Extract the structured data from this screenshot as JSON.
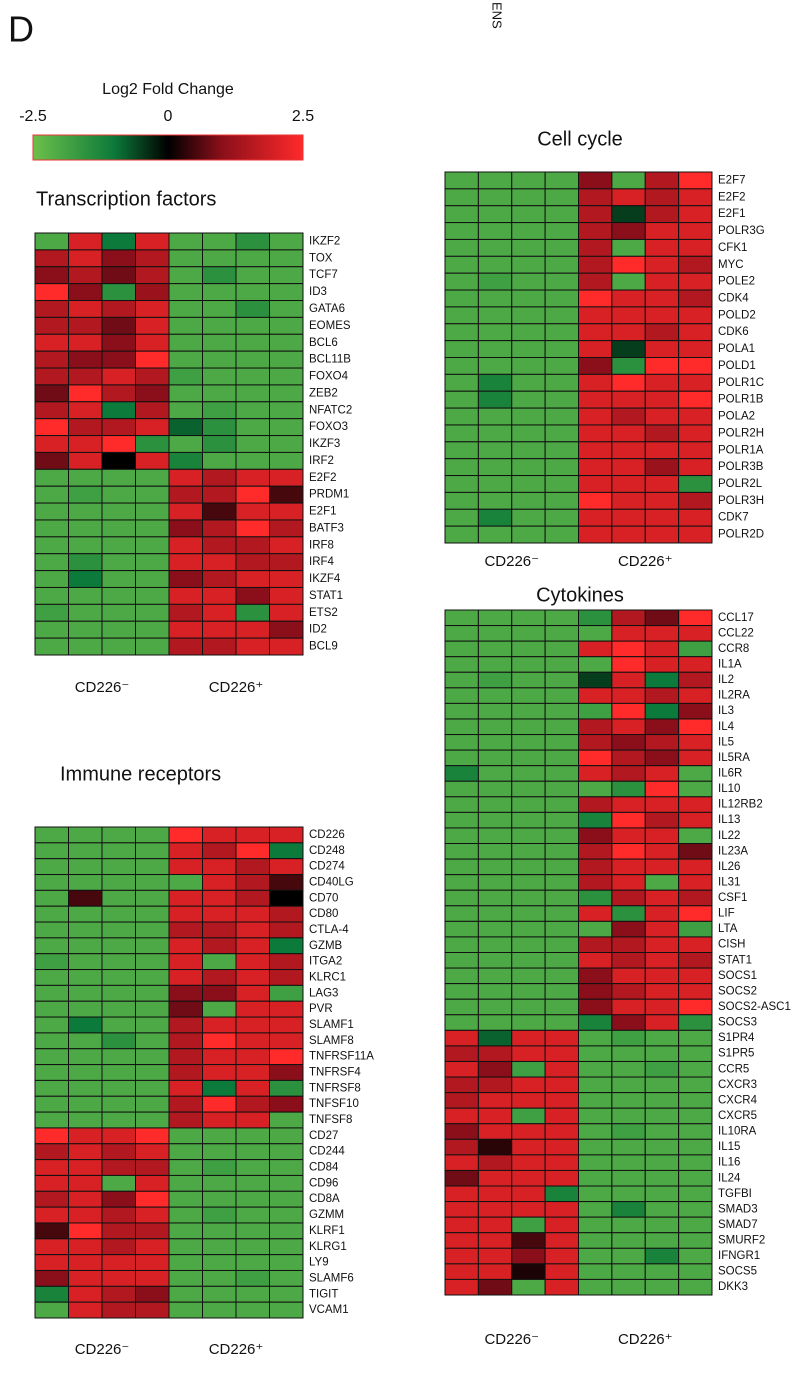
{
  "panel_label": "D",
  "cut_text": "ENS",
  "colorbar": {
    "title": "Log2 Fold Change",
    "lim": [
      -2.5,
      2.5
    ],
    "ticks": [
      -2.5,
      0,
      2.5
    ]
  },
  "chart_data": [
    {
      "type": "heatmap",
      "title": "Transcription factors",
      "groups": [
        "CD226⁻",
        "CD226⁺"
      ],
      "rows": [
        "IKZF2",
        "TOX",
        "TCF7",
        "ID3",
        "GATA6",
        "EOMES",
        "BCL6",
        "BCL11B",
        "FOXO4",
        "ZEB2",
        "NFATC2",
        "FOXO3",
        "IKZF3",
        "IRF2",
        "E2F2",
        "PRDM1",
        "E2F1",
        "BATF3",
        "IRF8",
        "IRF4",
        "IKZF4",
        "STAT1",
        "ETS2",
        "ID2",
        "BCL9"
      ],
      "values": [
        [
          -2,
          2,
          -1,
          2,
          -2,
          -2,
          -1.5,
          -2
        ],
        [
          1.5,
          2,
          1,
          1.5,
          -2,
          -2,
          -2,
          -2
        ],
        [
          1,
          1.5,
          0.8,
          1.5,
          -2,
          -1.5,
          -2,
          -2
        ],
        [
          2.5,
          1,
          -1.5,
          1.2,
          -2,
          -2,
          -2,
          -2
        ],
        [
          1.5,
          2,
          1.5,
          2,
          -2,
          -2,
          -1.5,
          -2
        ],
        [
          1.5,
          1.5,
          0.8,
          2,
          -2,
          -2,
          -2,
          -2
        ],
        [
          2,
          2,
          1,
          2,
          -2,
          -2,
          -2,
          -2
        ],
        [
          1.5,
          1,
          1,
          2.5,
          -2,
          -2,
          -2,
          -2
        ],
        [
          1.5,
          1.5,
          2,
          1.5,
          -1.8,
          -2,
          -2,
          -2
        ],
        [
          0.8,
          2.5,
          1.5,
          1,
          -2,
          -2,
          -2,
          -2
        ],
        [
          1.5,
          2,
          -1,
          1.5,
          -2,
          -1.8,
          -2,
          -2
        ],
        [
          2.5,
          1.5,
          1.5,
          2,
          -0.8,
          -1.5,
          -2,
          -2
        ],
        [
          2,
          2,
          2.5,
          -1.5,
          -2,
          -1.5,
          -2,
          -2
        ],
        [
          0.8,
          2,
          0,
          2,
          -1.2,
          -2,
          -2,
          -2
        ],
        [
          -2,
          -2,
          -2,
          -2,
          2,
          1.5,
          2,
          2
        ],
        [
          -2,
          -1.8,
          -2,
          -2,
          1.5,
          1.5,
          2.5,
          0.5
        ],
        [
          -2,
          -2,
          -2,
          -2,
          2,
          0.5,
          2,
          2
        ],
        [
          -2,
          -2,
          -2,
          -2,
          1,
          1.5,
          2.5,
          1.5
        ],
        [
          -2,
          -2,
          -2,
          -2,
          2,
          1.5,
          1.5,
          2
        ],
        [
          -2,
          -1.5,
          -2,
          -2,
          2,
          2,
          1.5,
          1.5
        ],
        [
          -2,
          -1,
          -2,
          -2,
          1,
          1.5,
          2,
          2
        ],
        [
          -2,
          -2,
          -2,
          -2,
          2,
          2,
          1,
          2
        ],
        [
          -1.8,
          -2,
          -2,
          -2,
          1.5,
          2,
          -1.5,
          2
        ],
        [
          -2,
          -2,
          -2,
          -2,
          2,
          2,
          2,
          1
        ],
        [
          -2,
          -2,
          -2,
          -2,
          1.5,
          1.5,
          2,
          2
        ]
      ]
    },
    {
      "type": "heatmap",
      "title": "Cell cycle",
      "groups": [
        "CD226⁻",
        "CD226⁺"
      ],
      "rows": [
        "E2F7",
        "E2F2",
        "E2F1",
        "POLR3G",
        "CFK1",
        "MYC",
        "POLE2",
        "CDK4",
        "POLD2",
        "CDK6",
        "POLA1",
        "POLD1",
        "POLR1C",
        "POLR1B",
        "POLA2",
        "POLR2H",
        "POLR1A",
        "POLR3B",
        "POLR2L",
        "POLR3H",
        "CDK7",
        "POLR2D"
      ],
      "values": [
        [
          -2,
          -2,
          -2,
          -2,
          1,
          -2,
          1.5,
          2.5
        ],
        [
          -2,
          -2,
          -2,
          -2,
          1.5,
          2,
          1.5,
          2
        ],
        [
          -2,
          -2,
          -2,
          -2,
          1.5,
          -0.5,
          1.5,
          2
        ],
        [
          -2,
          -2,
          -2,
          -2,
          1.5,
          1,
          2,
          2
        ],
        [
          -2,
          -2,
          -2,
          -2,
          1.5,
          -2,
          2,
          2
        ],
        [
          -2,
          -2,
          -2,
          -2,
          1.5,
          2.5,
          2,
          1.5
        ],
        [
          -2,
          -1.8,
          -2,
          -2,
          1.5,
          -2,
          2,
          2
        ],
        [
          -2,
          -2,
          -2,
          -2,
          2.5,
          2,
          2,
          1.5
        ],
        [
          -2,
          -2,
          -2,
          -2,
          2,
          2,
          2,
          2
        ],
        [
          -2,
          -2,
          -2,
          -2,
          2,
          2,
          1.5,
          2
        ],
        [
          -2,
          -2,
          -2,
          -2,
          2,
          -0.5,
          2,
          2
        ],
        [
          -2,
          -2,
          -2,
          -2,
          1,
          -1.5,
          2.5,
          2.5
        ],
        [
          -2,
          -1.2,
          -2,
          -2,
          2,
          2.5,
          2,
          2
        ],
        [
          -2,
          -1.2,
          -2,
          -2,
          2,
          2,
          2,
          2.5
        ],
        [
          -2,
          -2,
          -2,
          -2,
          2,
          1.5,
          2,
          2
        ],
        [
          -2,
          -2,
          -2,
          -2,
          2,
          2,
          1.5,
          2
        ],
        [
          -2,
          -2,
          -2,
          -2,
          2,
          2,
          2,
          2
        ],
        [
          -2,
          -2,
          -2,
          -2,
          2,
          2,
          1.2,
          2
        ],
        [
          -2,
          -2,
          -2,
          -2,
          2,
          2,
          2,
          -1.5
        ],
        [
          -2,
          -2,
          -2,
          -2,
          2.5,
          2,
          2,
          1.5
        ],
        [
          -2,
          -1.2,
          -2,
          -2,
          2,
          2,
          2,
          2
        ],
        [
          -2,
          -2,
          -2,
          -2,
          2,
          2,
          2,
          2
        ]
      ]
    },
    {
      "type": "heatmap",
      "title": "Cytokines",
      "groups": [
        "CD226⁻",
        "CD226⁺"
      ],
      "rows": [
        "CCL17",
        "CCL22",
        "CCR8",
        "IL1A",
        "IL2",
        "IL2RA",
        "IL3",
        "IL4",
        "IL5",
        "IL5RA",
        "IL6R",
        "IL10",
        "IL12RB2",
        "IL13",
        "IL22",
        "IL23A",
        "IL26",
        "IL31",
        "CSF1",
        "LIF",
        "LTA",
        "CISH",
        "STAT1",
        "SOCS1",
        "SOCS2",
        "SOCS2-ASC1",
        "SOCS3",
        "S1PR4",
        "S1PR5",
        "CCR5",
        "CXCR3",
        "CXCR4",
        "CXCR5",
        "IL10RA",
        "IL15",
        "IL16",
        "IL24",
        "TGFBI",
        "SMAD3",
        "SMAD7",
        "SMURF2",
        "IFNGR1",
        "SOCS5",
        "DKK3"
      ],
      "values": [
        [
          -2,
          -2,
          -2,
          -2,
          -1.5,
          1.5,
          0.8,
          2.5
        ],
        [
          -2,
          -2,
          -2,
          -2,
          -2,
          2,
          2,
          2
        ],
        [
          -2,
          -2,
          -2,
          -2,
          2,
          2.5,
          2,
          -1.8
        ],
        [
          -2,
          -2,
          -2,
          -2,
          -2,
          2.5,
          2,
          2
        ],
        [
          -2,
          -1.8,
          -2,
          -2,
          -0.5,
          2,
          -1,
          1.5
        ],
        [
          -2,
          -2,
          -2,
          -2,
          2,
          2,
          1.5,
          2
        ],
        [
          -2,
          -2,
          -2,
          -2,
          -1.8,
          2.5,
          -1,
          1
        ],
        [
          -2,
          -2,
          -2,
          -2,
          1.5,
          2,
          1,
          2.5
        ],
        [
          -2,
          -2,
          -2,
          -2,
          1.5,
          1,
          1.5,
          2
        ],
        [
          -2,
          -2,
          -2,
          -2,
          2.5,
          1.5,
          1,
          2
        ],
        [
          -1.2,
          -2,
          -2,
          -2,
          2,
          1.5,
          2,
          -2
        ],
        [
          -2,
          -2,
          -2,
          -2,
          -2,
          -1.5,
          2.5,
          -2
        ],
        [
          -2,
          -2,
          -2,
          -2,
          1.5,
          2,
          2,
          2
        ],
        [
          -2,
          -2,
          -2,
          -2,
          -1.2,
          2.5,
          1.5,
          2
        ],
        [
          -2,
          -2,
          -2,
          -2,
          1,
          2,
          2,
          -2
        ],
        [
          -2,
          -2,
          -2,
          -2,
          1.5,
          2.5,
          2,
          0.8
        ],
        [
          -2,
          -2,
          -2,
          -2,
          1.5,
          2,
          2,
          2
        ],
        [
          -2,
          -2,
          -2,
          -2,
          1.5,
          2,
          -2,
          2
        ],
        [
          -2,
          -2,
          -2,
          -2,
          -1.5,
          1.5,
          2,
          1.5
        ],
        [
          -2,
          -2,
          -2,
          -2,
          2,
          -1.5,
          2,
          2.5
        ],
        [
          -2,
          -2,
          -2,
          -2,
          -2,
          1,
          2,
          -1.8
        ],
        [
          -2,
          -2,
          -2,
          -2,
          1.5,
          1.5,
          2,
          2
        ],
        [
          -2,
          -2,
          -2,
          -2,
          2,
          1.5,
          2,
          1.5
        ],
        [
          -2,
          -2,
          -2,
          -2,
          1,
          2,
          2,
          2
        ],
        [
          -2,
          -2,
          -2,
          -2,
          1,
          1.5,
          2,
          2
        ],
        [
          -2,
          -2,
          -2,
          -2,
          1,
          2,
          2,
          2.5
        ],
        [
          -2,
          -2,
          -2,
          -2,
          -1.2,
          1,
          2,
          -1.5
        ],
        [
          2,
          -0.8,
          2,
          2,
          -2,
          -1.8,
          -2,
          -2
        ],
        [
          1.5,
          1.5,
          2,
          2,
          -2,
          -2,
          -2,
          -2
        ],
        [
          2,
          1,
          -1.8,
          2,
          -2,
          -2,
          -1.8,
          -2
        ],
        [
          1.5,
          1.5,
          2,
          2,
          -2,
          -2,
          -2,
          -2
        ],
        [
          1.5,
          2,
          2,
          2,
          -2,
          -2,
          -2,
          -2
        ],
        [
          2,
          2,
          -1.8,
          2,
          -2,
          -2,
          -2,
          -2
        ],
        [
          1,
          2,
          2,
          2,
          -2,
          -1.8,
          -2,
          -2
        ],
        [
          1.5,
          0.3,
          2,
          2,
          -2,
          -2,
          -2,
          -2
        ],
        [
          2,
          1.5,
          2,
          2,
          -2,
          -2,
          -2,
          -2
        ],
        [
          0.8,
          2,
          2,
          2,
          -2,
          -2,
          -2,
          -2
        ],
        [
          2,
          2,
          2,
          -1.2,
          -2,
          -2,
          -2,
          -2
        ],
        [
          2,
          2,
          2,
          2,
          -2,
          -1.2,
          -2,
          -2
        ],
        [
          2,
          2,
          -1.8,
          2,
          -2,
          -2,
          -2,
          -2
        ],
        [
          2,
          2,
          0.5,
          2,
          -2,
          -2,
          -2,
          -2
        ],
        [
          2,
          2,
          1,
          2,
          -2,
          -2,
          -1.2,
          -2
        ],
        [
          2,
          2,
          0.2,
          2,
          -2,
          -2,
          -2,
          -2
        ],
        [
          2,
          0.8,
          -2,
          2,
          -2,
          -2,
          -2,
          -2
        ]
      ]
    },
    {
      "type": "heatmap",
      "title": "Immune receptors",
      "groups": [
        "CD226⁻",
        "CD226⁺"
      ],
      "rows": [
        "CD226",
        "CD248",
        "CD274",
        "CD40LG",
        "CD70",
        "CD80",
        "CTLA-4",
        "GZMB",
        "ITGA2",
        "KLRC1",
        "LAG3",
        "PVR",
        "SLAMF1",
        "SLAMF8",
        "TNFRSF11A",
        "TNFRSF4",
        "TNFRSF8",
        "TNFSF10",
        "TNFSF8",
        "CD27",
        "CD244",
        "CD84",
        "CD96",
        "CD8A",
        "GZMM",
        "KLRF1",
        "KLRG1",
        "LY9",
        "SLAMF6",
        "TIGIT",
        "VCAM1"
      ],
      "values": [
        [
          -2,
          -2,
          -2,
          -2,
          2.5,
          2,
          2,
          2
        ],
        [
          -2,
          -2,
          -2,
          -2,
          2,
          1.5,
          2.5,
          -1
        ],
        [
          -2,
          -2,
          -2,
          -2,
          2,
          2,
          1.5,
          2
        ],
        [
          -2,
          -2,
          -2,
          -2,
          -2,
          2,
          1.5,
          0.5
        ],
        [
          -2,
          0.5,
          -2,
          -2,
          2,
          2,
          1.5,
          0
        ],
        [
          -2,
          -2,
          -2,
          -2,
          2,
          2,
          2,
          1.5
        ],
        [
          -2,
          -2,
          -2,
          -2,
          1.5,
          1.5,
          2,
          1.5
        ],
        [
          -2,
          -2,
          -2,
          -2,
          2,
          1.5,
          2,
          -1
        ],
        [
          -1.8,
          -2,
          -2,
          -2,
          2,
          -2,
          2,
          1.5
        ],
        [
          -2,
          -2,
          -2,
          -2,
          2,
          1.5,
          2,
          1.5
        ],
        [
          -2,
          -2,
          -2,
          -2,
          1,
          1,
          2,
          -1.8
        ],
        [
          -2,
          -2,
          -2,
          -2,
          0.8,
          -2,
          2,
          2
        ],
        [
          -2,
          -1,
          -2,
          -2,
          1.5,
          2,
          2,
          2
        ],
        [
          -2,
          -2,
          -1.5,
          -2,
          1.5,
          2.5,
          2,
          2
        ],
        [
          -2,
          -2,
          -2,
          -2,
          1.5,
          2,
          2,
          2.5
        ],
        [
          -2,
          -2,
          -2,
          -2,
          1.5,
          2,
          2,
          1
        ],
        [
          -2,
          -2,
          -2,
          -2,
          2,
          -1,
          2,
          -1.5
        ],
        [
          -2,
          -2,
          -2,
          -2,
          1.5,
          2.5,
          1.5,
          1
        ],
        [
          -2,
          -2,
          -2,
          -2,
          1.5,
          2,
          2,
          -2
        ],
        [
          2.5,
          2,
          2,
          2.5,
          -2,
          -2,
          -2,
          -2
        ],
        [
          1.5,
          2,
          1.5,
          2,
          -2,
          -2,
          -2,
          -2
        ],
        [
          2,
          2,
          1.5,
          1.5,
          -2,
          -1.8,
          -2,
          -2
        ],
        [
          2,
          2,
          -2,
          2,
          -2,
          -2,
          -2,
          -2
        ],
        [
          1.5,
          2,
          1,
          2.5,
          -2,
          -2,
          -2,
          -2
        ],
        [
          2,
          2,
          1.5,
          2,
          -2,
          -1.8,
          -2,
          -2
        ],
        [
          0.5,
          2.5,
          1.5,
          1.5,
          -2,
          -2,
          -2,
          -2
        ],
        [
          2,
          2,
          1.5,
          2,
          -2,
          -2,
          -2,
          -2
        ],
        [
          2,
          2,
          2,
          2,
          -2,
          -2,
          -2,
          -2
        ],
        [
          1,
          2,
          2,
          2,
          -2,
          -2,
          -1.8,
          -2
        ],
        [
          -1.2,
          2,
          1.5,
          1,
          -2,
          -2,
          -2,
          -2
        ],
        [
          -2,
          2,
          1.5,
          1.5,
          -2,
          -2,
          -2,
          -2
        ]
      ]
    }
  ]
}
